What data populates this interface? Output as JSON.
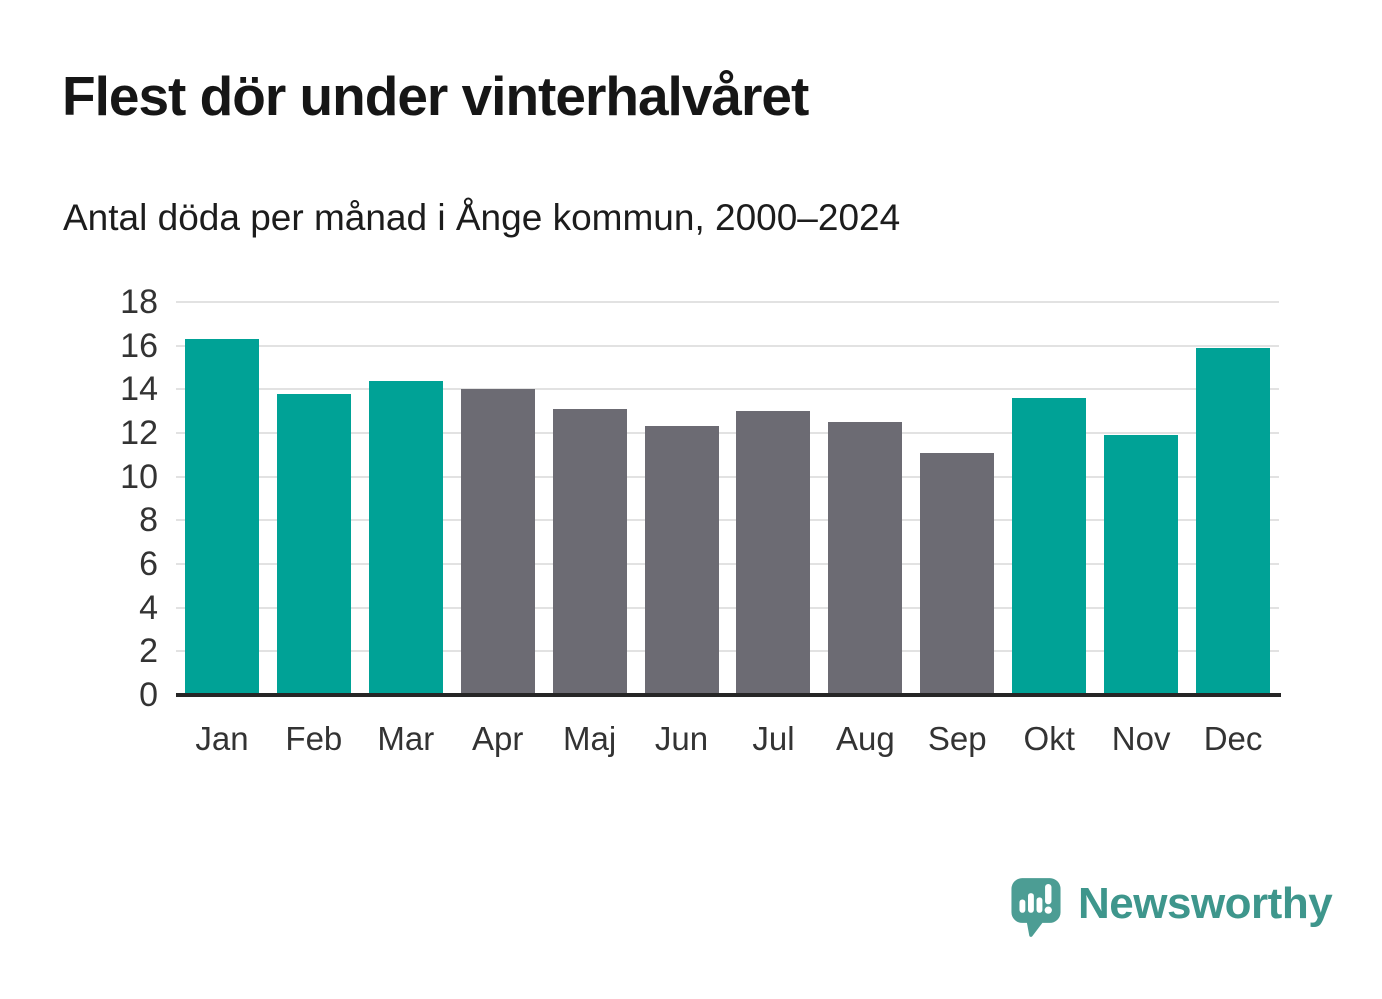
{
  "page": {
    "title": "Flest dör under vinterhalvåret",
    "subtitle": "Antal döda per månad i Ånge kommun, 2000–2024"
  },
  "chart_data": {
    "type": "bar",
    "title": "Flest dör under vinterhalvåret",
    "subtitle": "Antal döda per månad i Ånge kommun, 2000–2024",
    "categories": [
      "Jan",
      "Feb",
      "Mar",
      "Apr",
      "Maj",
      "Jun",
      "Jul",
      "Aug",
      "Sep",
      "Okt",
      "Nov",
      "Dec"
    ],
    "values": [
      16.3,
      13.8,
      14.4,
      14.0,
      13.1,
      12.3,
      13.0,
      12.5,
      11.1,
      13.6,
      11.9,
      15.9
    ],
    "bar_color_keys": [
      "winter",
      "winter",
      "winter",
      "summer",
      "summer",
      "summer",
      "summer",
      "summer",
      "summer",
      "winter",
      "winter",
      "winter"
    ],
    "xlabel": "",
    "ylabel": "",
    "ylim": [
      0,
      18
    ],
    "yticks": [
      0,
      2,
      4,
      6,
      8,
      10,
      12,
      14,
      16,
      18
    ],
    "grid": "horizontal-only",
    "legend_position": "none",
    "colors": {
      "winter": "#00a296",
      "summer": "#6c6b73",
      "gridline": "#e2e2e2",
      "axis": "#262626",
      "tick_text": "#333333"
    }
  },
  "branding": {
    "logo_text": "Newsworthy",
    "logo_text_color": "#3e968c",
    "logo_icon_color": "#4c9d94",
    "logo_icon": "bar-chart-speech-bubble-icon"
  }
}
